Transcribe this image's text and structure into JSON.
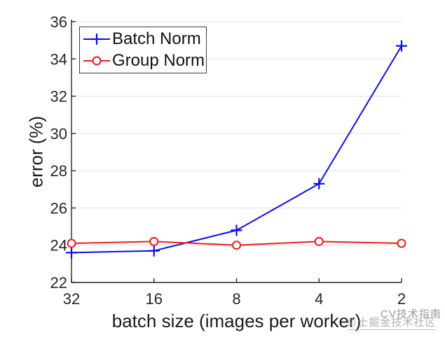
{
  "chart_data": {
    "type": "line",
    "title": "",
    "xlabel": "batch size (images per worker)",
    "ylabel": "error (%)",
    "x_categories": [
      "32",
      "16",
      "8",
      "4",
      "2"
    ],
    "ylim": [
      22,
      36
    ],
    "yticks": [
      22,
      24,
      26,
      28,
      30,
      32,
      34,
      36
    ],
    "grid": "horizontal-only",
    "legend_position": "top-left-inside",
    "series": [
      {
        "name": "Batch Norm",
        "color": "#0d0de8",
        "marker": "plus",
        "values": [
          23.6,
          23.7,
          24.8,
          27.3,
          34.7
        ]
      },
      {
        "name": "Group Norm",
        "color": "#ee1d1d",
        "marker": "circle-open",
        "values": [
          24.1,
          24.2,
          24.0,
          24.2,
          24.1
        ]
      }
    ]
  },
  "watermark": {
    "logo_glyph": "◎",
    "line1": "CV技术指南",
    "line2": "士掘金技术社区"
  },
  "colors": {
    "axis": "#262626",
    "grid": "#e0e0e0",
    "tick_label": "#262626",
    "background": "#ffffff"
  }
}
